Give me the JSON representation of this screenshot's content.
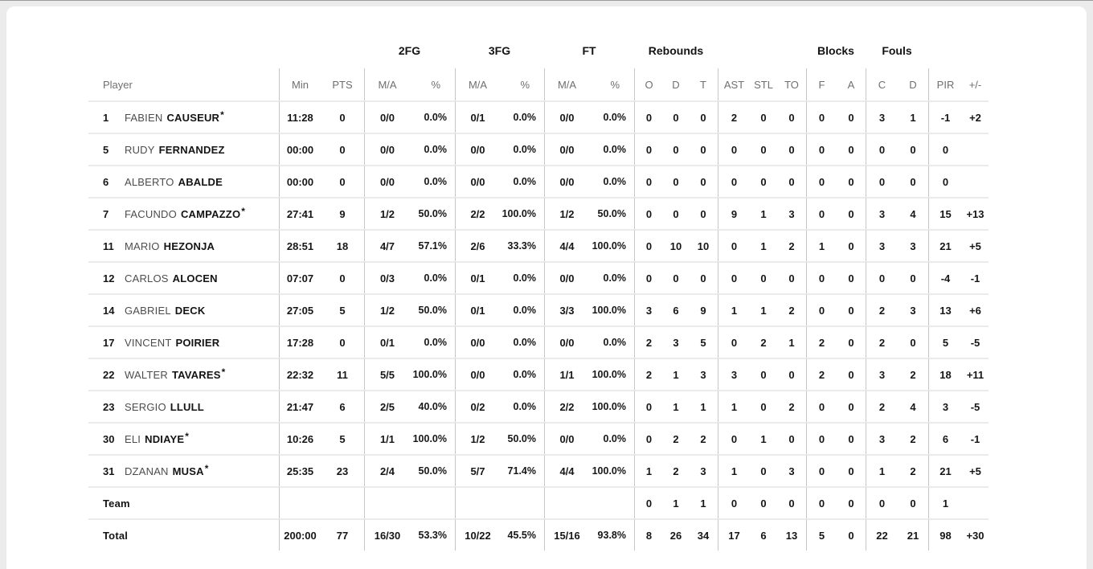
{
  "table": {
    "group_headers": {
      "fg2": "2FG",
      "fg3": "3FG",
      "ft": "FT",
      "rebounds": "Rebounds",
      "blocks": "Blocks",
      "fouls": "Fouls"
    },
    "column_headers": {
      "player": "Player",
      "min": "Min",
      "pts": "PTS",
      "ma": "M/A",
      "pct": "%",
      "reb_o": "O",
      "reb_d": "D",
      "reb_t": "T",
      "ast": "AST",
      "stl": "STL",
      "to": "TO",
      "blk_f": "F",
      "blk_a": "A",
      "foul_c": "C",
      "foul_d": "D",
      "pir": "PIR",
      "plus_minus": "+/-"
    },
    "rows": [
      {
        "type": "player",
        "num": "1",
        "first": "FABIEN",
        "last": "CAUSEUR",
        "star": "*",
        "min": "11:28",
        "pts": "0",
        "fg2_ma": "0/0",
        "fg2_pct": "0.0%",
        "fg3_ma": "0/1",
        "fg3_pct": "0.0%",
        "ft_ma": "0/0",
        "ft_pct": "0.0%",
        "reb_o": "0",
        "reb_d": "0",
        "reb_t": "0",
        "ast": "2",
        "stl": "0",
        "to": "0",
        "blk_f": "0",
        "blk_a": "0",
        "foul_c": "3",
        "foul_d": "1",
        "pir": "-1",
        "pm": "+2"
      },
      {
        "type": "player",
        "num": "5",
        "first": "RUDY",
        "last": "FERNANDEZ",
        "min": "00:00",
        "pts": "0",
        "fg2_ma": "0/0",
        "fg2_pct": "0.0%",
        "fg3_ma": "0/0",
        "fg3_pct": "0.0%",
        "ft_ma": "0/0",
        "ft_pct": "0.0%",
        "reb_o": "0",
        "reb_d": "0",
        "reb_t": "0",
        "ast": "0",
        "stl": "0",
        "to": "0",
        "blk_f": "0",
        "blk_a": "0",
        "foul_c": "0",
        "foul_d": "0",
        "pir": "0",
        "pm": ""
      },
      {
        "type": "player",
        "num": "6",
        "first": "ALBERTO",
        "last": "ABALDE",
        "min": "00:00",
        "pts": "0",
        "fg2_ma": "0/0",
        "fg2_pct": "0.0%",
        "fg3_ma": "0/0",
        "fg3_pct": "0.0%",
        "ft_ma": "0/0",
        "ft_pct": "0.0%",
        "reb_o": "0",
        "reb_d": "0",
        "reb_t": "0",
        "ast": "0",
        "stl": "0",
        "to": "0",
        "blk_f": "0",
        "blk_a": "0",
        "foul_c": "0",
        "foul_d": "0",
        "pir": "0",
        "pm": ""
      },
      {
        "type": "player",
        "num": "7",
        "first": "FACUNDO",
        "last": "CAMPAZZO",
        "star": "*",
        "min": "27:41",
        "pts": "9",
        "fg2_ma": "1/2",
        "fg2_pct": "50.0%",
        "fg3_ma": "2/2",
        "fg3_pct": "100.0%",
        "ft_ma": "1/2",
        "ft_pct": "50.0%",
        "reb_o": "0",
        "reb_d": "0",
        "reb_t": "0",
        "ast": "9",
        "stl": "1",
        "to": "3",
        "blk_f": "0",
        "blk_a": "0",
        "foul_c": "3",
        "foul_d": "4",
        "pir": "15",
        "pm": "+13"
      },
      {
        "type": "player",
        "num": "11",
        "first": "MARIO",
        "last": "HEZONJA",
        "min": "28:51",
        "pts": "18",
        "fg2_ma": "4/7",
        "fg2_pct": "57.1%",
        "fg3_ma": "2/6",
        "fg3_pct": "33.3%",
        "ft_ma": "4/4",
        "ft_pct": "100.0%",
        "reb_o": "0",
        "reb_d": "10",
        "reb_t": "10",
        "ast": "0",
        "stl": "1",
        "to": "2",
        "blk_f": "1",
        "blk_a": "0",
        "foul_c": "3",
        "foul_d": "3",
        "pir": "21",
        "pm": "+5"
      },
      {
        "type": "player",
        "num": "12",
        "first": "CARLOS",
        "last": "ALOCEN",
        "min": "07:07",
        "pts": "0",
        "fg2_ma": "0/3",
        "fg2_pct": "0.0%",
        "fg3_ma": "0/1",
        "fg3_pct": "0.0%",
        "ft_ma": "0/0",
        "ft_pct": "0.0%",
        "reb_o": "0",
        "reb_d": "0",
        "reb_t": "0",
        "ast": "0",
        "stl": "0",
        "to": "0",
        "blk_f": "0",
        "blk_a": "0",
        "foul_c": "0",
        "foul_d": "0",
        "pir": "-4",
        "pm": "-1"
      },
      {
        "type": "player",
        "num": "14",
        "first": "GABRIEL",
        "last": "DECK",
        "min": "27:05",
        "pts": "5",
        "fg2_ma": "1/2",
        "fg2_pct": "50.0%",
        "fg3_ma": "0/1",
        "fg3_pct": "0.0%",
        "ft_ma": "3/3",
        "ft_pct": "100.0%",
        "reb_o": "3",
        "reb_d": "6",
        "reb_t": "9",
        "ast": "1",
        "stl": "1",
        "to": "2",
        "blk_f": "0",
        "blk_a": "0",
        "foul_c": "2",
        "foul_d": "3",
        "pir": "13",
        "pm": "+6"
      },
      {
        "type": "player",
        "num": "17",
        "first": "VINCENT",
        "last": "POIRIER",
        "min": "17:28",
        "pts": "0",
        "fg2_ma": "0/1",
        "fg2_pct": "0.0%",
        "fg3_ma": "0/0",
        "fg3_pct": "0.0%",
        "ft_ma": "0/0",
        "ft_pct": "0.0%",
        "reb_o": "2",
        "reb_d": "3",
        "reb_t": "5",
        "ast": "0",
        "stl": "2",
        "to": "1",
        "blk_f": "2",
        "blk_a": "0",
        "foul_c": "2",
        "foul_d": "0",
        "pir": "5",
        "pm": "-5"
      },
      {
        "type": "player",
        "num": "22",
        "first": "WALTER",
        "last": "TAVARES",
        "star": "*",
        "min": "22:32",
        "pts": "11",
        "fg2_ma": "5/5",
        "fg2_pct": "100.0%",
        "fg3_ma": "0/0",
        "fg3_pct": "0.0%",
        "ft_ma": "1/1",
        "ft_pct": "100.0%",
        "reb_o": "2",
        "reb_d": "1",
        "reb_t": "3",
        "ast": "3",
        "stl": "0",
        "to": "0",
        "blk_f": "2",
        "blk_a": "0",
        "foul_c": "3",
        "foul_d": "2",
        "pir": "18",
        "pm": "+11"
      },
      {
        "type": "player",
        "num": "23",
        "first": "SERGIO",
        "last": "LLULL",
        "min": "21:47",
        "pts": "6",
        "fg2_ma": "2/5",
        "fg2_pct": "40.0%",
        "fg3_ma": "0/2",
        "fg3_pct": "0.0%",
        "ft_ma": "2/2",
        "ft_pct": "100.0%",
        "reb_o": "0",
        "reb_d": "1",
        "reb_t": "1",
        "ast": "1",
        "stl": "0",
        "to": "2",
        "blk_f": "0",
        "blk_a": "0",
        "foul_c": "2",
        "foul_d": "4",
        "pir": "3",
        "pm": "-5"
      },
      {
        "type": "player",
        "num": "30",
        "first": "ELI",
        "last": "NDIAYE",
        "star": "*",
        "min": "10:26",
        "pts": "5",
        "fg2_ma": "1/1",
        "fg2_pct": "100.0%",
        "fg3_ma": "1/2",
        "fg3_pct": "50.0%",
        "ft_ma": "0/0",
        "ft_pct": "0.0%",
        "reb_o": "0",
        "reb_d": "2",
        "reb_t": "2",
        "ast": "0",
        "stl": "1",
        "to": "0",
        "blk_f": "0",
        "blk_a": "0",
        "foul_c": "3",
        "foul_d": "2",
        "pir": "6",
        "pm": "-1"
      },
      {
        "type": "player",
        "num": "31",
        "first": "DZANAN",
        "last": "MUSA",
        "star": "*",
        "min": "25:35",
        "pts": "23",
        "fg2_ma": "2/4",
        "fg2_pct": "50.0%",
        "fg3_ma": "5/7",
        "fg3_pct": "71.4%",
        "ft_ma": "4/4",
        "ft_pct": "100.0%",
        "reb_o": "1",
        "reb_d": "2",
        "reb_t": "3",
        "ast": "1",
        "stl": "0",
        "to": "3",
        "blk_f": "0",
        "blk_a": "0",
        "foul_c": "1",
        "foul_d": "2",
        "pir": "21",
        "pm": "+5"
      },
      {
        "type": "team",
        "last": "Team",
        "min": "",
        "pts": "",
        "fg2_ma": "",
        "fg2_pct": "",
        "fg3_ma": "",
        "fg3_pct": "",
        "ft_ma": "",
        "ft_pct": "",
        "reb_o": "0",
        "reb_d": "1",
        "reb_t": "1",
        "ast": "0",
        "stl": "0",
        "to": "0",
        "blk_f": "0",
        "blk_a": "0",
        "foul_c": "0",
        "foul_d": "0",
        "pir": "1",
        "pm": ""
      },
      {
        "type": "total",
        "last": "Total",
        "min": "200:00",
        "pts": "77",
        "fg2_ma": "16/30",
        "fg2_pct": "53.3%",
        "fg3_ma": "10/22",
        "fg3_pct": "45.5%",
        "ft_ma": "15/16",
        "ft_pct": "93.8%",
        "reb_o": "8",
        "reb_d": "26",
        "reb_t": "34",
        "ast": "17",
        "stl": "6",
        "to": "13",
        "blk_f": "5",
        "blk_a": "0",
        "foul_c": "22",
        "foul_d": "21",
        "pir": "98",
        "pm": "+30"
      }
    ]
  }
}
